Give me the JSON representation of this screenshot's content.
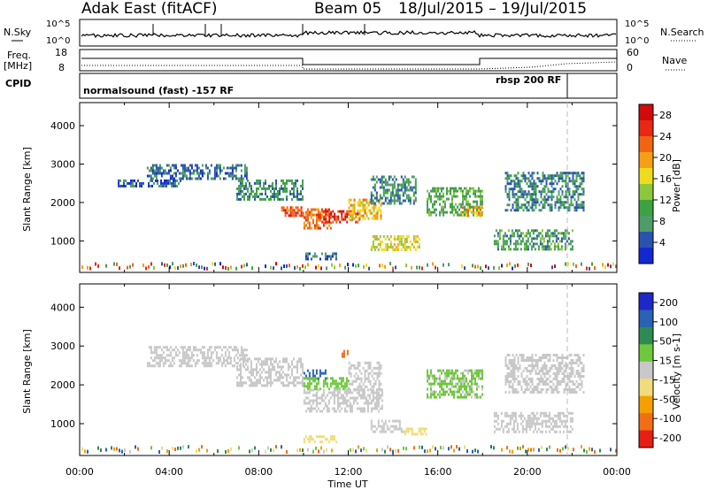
{
  "header": {
    "radar": "Adak East (fitACF)",
    "beam": "Beam 05",
    "date_range": "18/Jul/2015 – 19/Jul/2015"
  },
  "summary_panels": {
    "nsky_label": "N.Sky",
    "nsearch_label": "N.Search",
    "log_top": "10^5",
    "log_bottom": "10^0",
    "freq_label_1": "Freq.",
    "freq_label_2": "[MHz]",
    "freq_ticks": [
      "18",
      "8"
    ],
    "nave_label": "Nave",
    "nave_ticks": [
      "60",
      "0"
    ],
    "cpid_label": "CPID",
    "cpid_mode_1": "normalsound (fast) -157 RF",
    "cpid_mode_2": "rbsp 200 RF"
  },
  "colors": {
    "power": [
      "#1428d2",
      "#2a53b0",
      "#4f9b6a",
      "#3ca340",
      "#8cc83c",
      "#f0dc1e",
      "#f5a014",
      "#f06414",
      "#e62814",
      "#d20a0a"
    ],
    "velocity": [
      "#1e28c8",
      "#2a62b4",
      "#2e8c50",
      "#6ec83c",
      "#c8c8c8",
      "#f0dc78",
      "#f5a000",
      "#f06e14",
      "#e61e14"
    ]
  },
  "chart_data": {
    "type": "heatmap",
    "xlabel": "Time UT",
    "x_tick_labels": [
      "00:00",
      "04:00",
      "08:00",
      "12:00",
      "16:00",
      "20:00",
      "00:00"
    ],
    "xlim_hours": [
      0,
      24
    ],
    "ylabel": "Slant Range [km]",
    "y_ticks": [
      1000,
      2000,
      3000,
      4000
    ],
    "ylim_km": [
      180,
      4600
    ],
    "panels": [
      {
        "name": "power",
        "colorbar_label": "Power [dB]",
        "colorbar_ticks": [
          4,
          8,
          12,
          16,
          20,
          24,
          28
        ],
        "colorbar_range": [
          0,
          30
        ],
        "regions": [
          {
            "t0": 1.7,
            "t1": 4.5,
            "r0": 2400,
            "r1": 2600,
            "v": 5
          },
          {
            "t0": 3.0,
            "t1": 7.5,
            "r0": 2600,
            "r1": 3000,
            "v": 6
          },
          {
            "t0": 7.0,
            "t1": 10.0,
            "r0": 2100,
            "r1": 2600,
            "v": 8
          },
          {
            "t0": 9.0,
            "t1": 10.0,
            "r0": 1650,
            "r1": 1900,
            "v": 24
          },
          {
            "t0": 10.0,
            "t1": 11.2,
            "r0": 1350,
            "r1": 1850,
            "v": 22
          },
          {
            "t0": 10.8,
            "t1": 12.5,
            "r0": 1500,
            "r1": 1800,
            "v": 26
          },
          {
            "t0": 12.0,
            "t1": 13.5,
            "r0": 1600,
            "r1": 2100,
            "v": 18
          },
          {
            "t0": 13.0,
            "t1": 15.0,
            "r0": 2000,
            "r1": 2700,
            "v": 7
          },
          {
            "t0": 13.0,
            "t1": 15.2,
            "r0": 800,
            "r1": 1150,
            "v": 16
          },
          {
            "t0": 10.0,
            "t1": 11.5,
            "r0": 500,
            "r1": 700,
            "v": 5
          },
          {
            "t0": 15.5,
            "t1": 18.0,
            "r0": 1700,
            "r1": 2400,
            "v": 10
          },
          {
            "t0": 17.0,
            "t1": 18.0,
            "r0": 1650,
            "r1": 1900,
            "v": 20
          },
          {
            "t0": 19.0,
            "t1": 22.5,
            "r0": 1800,
            "r1": 2800,
            "v": 7
          },
          {
            "t0": 18.5,
            "t1": 22.0,
            "r0": 800,
            "r1": 1300,
            "v": 9
          }
        ]
      },
      {
        "name": "velocity",
        "colorbar_label": "Velocity [m s-1]",
        "colorbar_ticks": [
          200,
          100,
          50,
          15,
          -15,
          -50,
          -100,
          -200
        ],
        "regions": [
          {
            "t0": 3.0,
            "t1": 7.5,
            "r0": 2500,
            "r1": 3000,
            "v": 0
          },
          {
            "t0": 7.0,
            "t1": 10.0,
            "r0": 2000,
            "r1": 2700,
            "v": 0
          },
          {
            "t0": 10.0,
            "t1": 11.0,
            "r0": 2150,
            "r1": 2400,
            "v": 150
          },
          {
            "t0": 10.0,
            "t1": 12.0,
            "r0": 1900,
            "r1": 2200,
            "v": 40
          },
          {
            "t0": 10.0,
            "t1": 13.5,
            "r0": 1350,
            "r1": 1900,
            "v": 0
          },
          {
            "t0": 12.0,
            "t1": 13.5,
            "r0": 1900,
            "r1": 2600,
            "v": 0
          },
          {
            "t0": 13.0,
            "t1": 14.5,
            "r0": 800,
            "r1": 1100,
            "v": 0
          },
          {
            "t0": 14.5,
            "t1": 15.5,
            "r0": 700,
            "r1": 900,
            "v": -40
          },
          {
            "t0": 10.0,
            "t1": 11.5,
            "r0": 500,
            "r1": 700,
            "v": -40
          },
          {
            "t0": 11.7,
            "t1": 12.0,
            "r0": 2700,
            "r1": 2900,
            "v": -150
          },
          {
            "t0": 15.5,
            "t1": 18.0,
            "r0": 1700,
            "r1": 2400,
            "v": 20
          },
          {
            "t0": 19.0,
            "t1": 22.5,
            "r0": 1800,
            "r1": 2800,
            "v": 0
          },
          {
            "t0": 18.5,
            "t1": 22.0,
            "r0": 800,
            "r1": 1300,
            "v": 0
          }
        ]
      }
    ]
  }
}
